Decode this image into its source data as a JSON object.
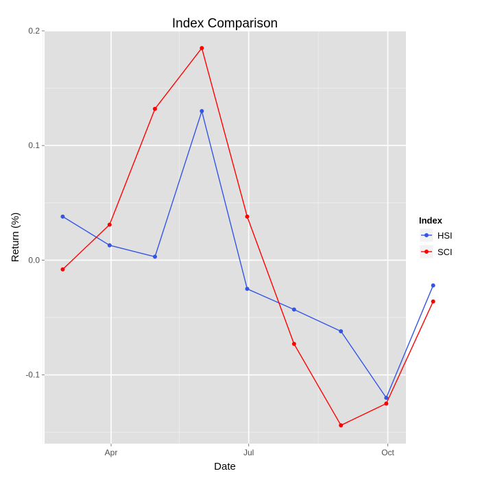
{
  "chart_data": {
    "type": "line",
    "title": "Index Comparison",
    "xlabel": "Date",
    "ylabel": "Return (%)",
    "x": [
      "2014-02-28",
      "2014-03-31",
      "2014-04-30",
      "2014-05-31",
      "2014-06-30",
      "2014-07-31",
      "2014-08-31",
      "2014-09-30",
      "2014-10-31"
    ],
    "x_ticks": [
      {
        "date": "2014-04-01",
        "label": "Apr"
      },
      {
        "date": "2014-07-01",
        "label": "Jul"
      },
      {
        "date": "2014-10-01",
        "label": "Oct"
      }
    ],
    "x_minor_ticks": [
      "2014-02-15",
      "2014-05-16",
      "2014-08-16"
    ],
    "xlim": [
      "2014-02-16",
      "2014-10-13"
    ],
    "y_ticks": [
      {
        "value": -0.1,
        "label": "-0.1"
      },
      {
        "value": 0.0,
        "label": "0.0"
      },
      {
        "value": 0.1,
        "label": "0.1"
      },
      {
        "value": 0.2,
        "label": "0.2"
      }
    ],
    "y_minor_ticks": [
      -0.15,
      -0.05,
      0.05,
      0.15
    ],
    "ylim": [
      -0.16,
      0.2
    ],
    "grid": true,
    "legend": {
      "title": "Index",
      "placement": "right"
    },
    "series": [
      {
        "name": "HSI",
        "color": "#3355e6",
        "values": [
          0.038,
          0.013,
          0.003,
          0.13,
          -0.025,
          -0.043,
          -0.062,
          -0.12,
          -0.022
        ]
      },
      {
        "name": "SCI",
        "color": "#ff0000",
        "values": [
          -0.008,
          0.031,
          0.132,
          0.185,
          0.038,
          -0.073,
          -0.144,
          -0.125,
          -0.036
        ]
      }
    ]
  }
}
